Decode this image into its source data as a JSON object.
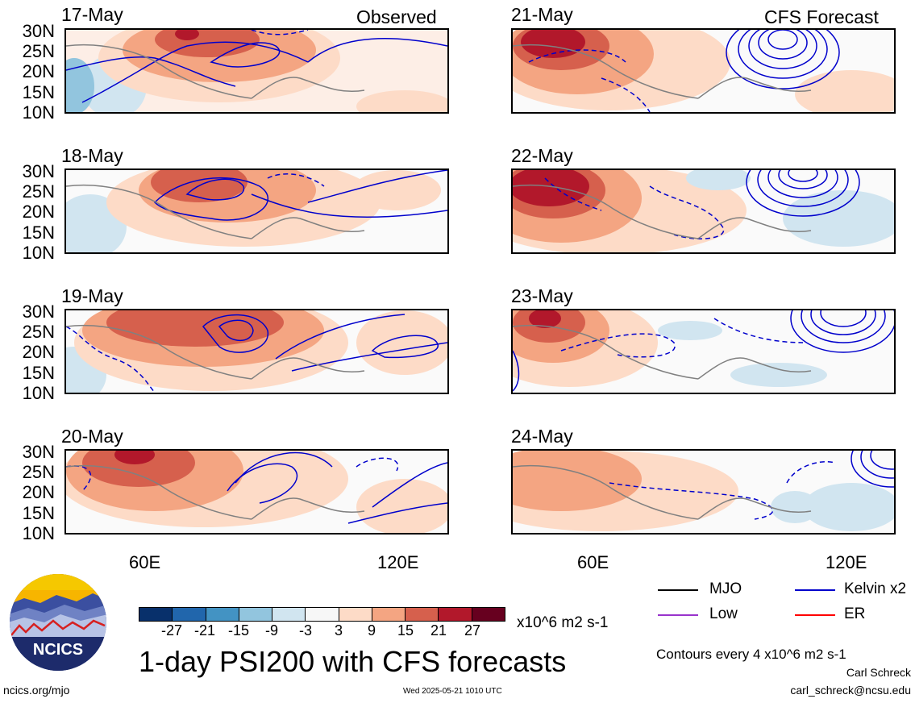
{
  "panels": [
    {
      "date": "17-May",
      "corner": "Observed"
    },
    {
      "date": "18-May",
      "corner": ""
    },
    {
      "date": "19-May",
      "corner": ""
    },
    {
      "date": "20-May",
      "corner": ""
    },
    {
      "date": "21-May",
      "corner": "CFS Forecast"
    },
    {
      "date": "22-May",
      "corner": ""
    },
    {
      "date": "23-May",
      "corner": ""
    },
    {
      "date": "24-May",
      "corner": ""
    }
  ],
  "lat_labels": [
    "30N",
    "25N",
    "20N",
    "15N",
    "10N"
  ],
  "lon_labels": [
    "60E",
    "120E"
  ],
  "colorbar": {
    "ticks": [
      "-27",
      "-21",
      "-15",
      "-9",
      "-3",
      "3",
      "9",
      "15",
      "21",
      "27"
    ],
    "units": "x10^6 m2 s-1",
    "colors": [
      "#08306b",
      "#2166ac",
      "#4393c3",
      "#92c5de",
      "#d1e5f0",
      "#f7f7f7",
      "#fddbc7",
      "#f4a582",
      "#d6604d",
      "#b2182b",
      "#67001f"
    ]
  },
  "title": "1-day PSI200 with CFS forecasts",
  "legend": {
    "items": [
      {
        "label": "MJO",
        "color": "#000000"
      },
      {
        "label": "Kelvin x2",
        "color": "#0000cc"
      },
      {
        "label": "Low",
        "color": "#9933cc"
      },
      {
        "label": "ER",
        "color": "#ff0000"
      }
    ],
    "contour_note": "Contours every 4 x10^6 m2 s-1"
  },
  "footer": {
    "site": "ncics.org/mjo",
    "timestamp": "Wed 2025-05-21 1010 UTC",
    "author": "Carl Schreck",
    "email": "carl_schreck@ncsu.edu",
    "logo_text": "NCICS"
  }
}
